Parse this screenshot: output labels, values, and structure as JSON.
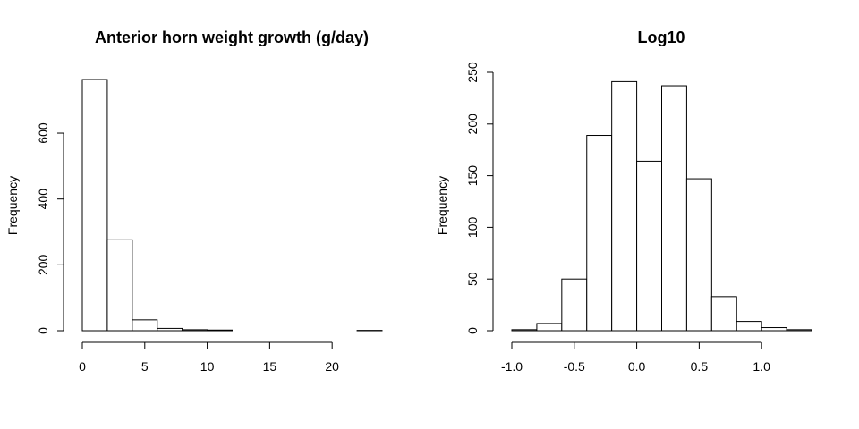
{
  "chart_data": [
    {
      "type": "bar",
      "title": "Anterior horn weight growth (g/day)",
      "xlabel": "",
      "ylabel": "Frequency",
      "bins": [
        {
          "from": 0,
          "to": 2,
          "count": 763
        },
        {
          "from": 2,
          "to": 4,
          "count": 276
        },
        {
          "from": 4,
          "to": 6,
          "count": 33
        },
        {
          "from": 6,
          "to": 8,
          "count": 7
        },
        {
          "from": 8,
          "to": 10,
          "count": 3
        },
        {
          "from": 10,
          "to": 12,
          "count": 2
        },
        {
          "from": 12,
          "to": 14,
          "count": 0
        },
        {
          "from": 14,
          "to": 16,
          "count": 0
        },
        {
          "from": 16,
          "to": 18,
          "count": 0
        },
        {
          "from": 18,
          "to": 20,
          "count": 0
        },
        {
          "from": 20,
          "to": 22,
          "count": 0
        },
        {
          "from": 22,
          "to": 24,
          "count": 1
        }
      ],
      "xticks": [
        0,
        5,
        10,
        15,
        20
      ],
      "xtick_labels": [
        "0",
        "5",
        "10",
        "15",
        "20"
      ],
      "yticks": [
        0,
        200,
        400,
        600
      ],
      "ytick_labels": [
        "0",
        "200",
        "400",
        "600"
      ],
      "xlim": [
        0,
        24
      ],
      "ylim": [
        0,
        763
      ]
    },
    {
      "type": "bar",
      "title": "Log10",
      "xlabel": "",
      "ylabel": "Frequency",
      "bins": [
        {
          "from": -1.0,
          "to": -0.8,
          "count": 1
        },
        {
          "from": -0.8,
          "to": -0.6,
          "count": 7
        },
        {
          "from": -0.6,
          "to": -0.4,
          "count": 50
        },
        {
          "from": -0.4,
          "to": -0.2,
          "count": 189
        },
        {
          "from": -0.2,
          "to": 0.0,
          "count": 241
        },
        {
          "from": 0.0,
          "to": 0.2,
          "count": 164
        },
        {
          "from": 0.2,
          "to": 0.4,
          "count": 237
        },
        {
          "from": 0.4,
          "to": 0.6,
          "count": 147
        },
        {
          "from": 0.6,
          "to": 0.8,
          "count": 33
        },
        {
          "from": 0.8,
          "to": 1.0,
          "count": 9
        },
        {
          "from": 1.0,
          "to": 1.2,
          "count": 3
        },
        {
          "from": 1.2,
          "to": 1.4,
          "count": 1
        }
      ],
      "xticks": [
        -1.0,
        -0.5,
        0.0,
        0.5,
        1.0
      ],
      "xtick_labels": [
        "-1.0",
        "-0.5",
        "0.0",
        "0.5",
        "1.0"
      ],
      "yticks": [
        0,
        50,
        100,
        150,
        200,
        250
      ],
      "ytick_labels": [
        "0",
        "50",
        "100",
        "150",
        "200",
        "250"
      ],
      "xlim": [
        -1.0,
        1.4
      ],
      "ylim": [
        0,
        250
      ]
    }
  ]
}
